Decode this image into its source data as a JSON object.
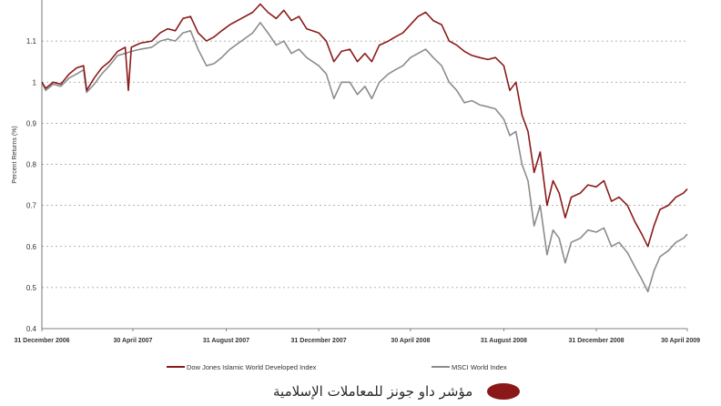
{
  "chart_data": {
    "type": "line",
    "title": "",
    "xlabel": "",
    "ylabel": "Percent Returns (%)",
    "ylim": [
      0.4,
      1.2
    ],
    "yticks": [
      "0.4",
      "0.5",
      "0.6",
      "0.7",
      "0.8",
      "0.9",
      "1",
      "1.1"
    ],
    "x_range": [
      "2006-12-31",
      "2009-04-30"
    ],
    "xticks": [
      {
        "date": "2006-12-31",
        "label": "31 December 2006"
      },
      {
        "date": "2007-04-30",
        "label": "30 April 2007"
      },
      {
        "date": "2007-08-31",
        "label": "31 August 2007"
      },
      {
        "date": "2007-12-31",
        "label": "31 December 2007"
      },
      {
        "date": "2008-04-30",
        "label": "30 April 2008"
      },
      {
        "date": "2008-08-31",
        "label": "31 August 2008"
      },
      {
        "date": "2008-12-31",
        "label": "31 December 2008"
      },
      {
        "date": "2009-04-30",
        "label": "30 April 2009"
      }
    ],
    "grid": true,
    "legend_position": "bottom",
    "series": [
      {
        "name": "Dow Jones Islamic World Developed Index",
        "color": "#8b1a1a",
        "points": [
          [
            "2006-12-31",
            1.0
          ],
          [
            "2007-01-05",
            0.985
          ],
          [
            "2007-01-15",
            1.0
          ],
          [
            "2007-01-25",
            0.995
          ],
          [
            "2007-02-05",
            1.02
          ],
          [
            "2007-02-15",
            1.035
          ],
          [
            "2007-02-24",
            1.04
          ],
          [
            "2007-02-28",
            0.98
          ],
          [
            "2007-03-10",
            1.01
          ],
          [
            "2007-03-20",
            1.035
          ],
          [
            "2007-03-30",
            1.05
          ],
          [
            "2007-04-10",
            1.075
          ],
          [
            "2007-04-20",
            1.085
          ],
          [
            "2007-04-24",
            0.98
          ],
          [
            "2007-04-28",
            1.085
          ],
          [
            "2007-05-10",
            1.095
          ],
          [
            "2007-05-25",
            1.1
          ],
          [
            "2007-06-05",
            1.12
          ],
          [
            "2007-06-15",
            1.13
          ],
          [
            "2007-06-25",
            1.125
          ],
          [
            "2007-07-05",
            1.155
          ],
          [
            "2007-07-15",
            1.16
          ],
          [
            "2007-07-25",
            1.12
          ],
          [
            "2007-08-05",
            1.1
          ],
          [
            "2007-08-15",
            1.11
          ],
          [
            "2007-08-25",
            1.125
          ],
          [
            "2007-09-05",
            1.14
          ],
          [
            "2007-09-20",
            1.155
          ],
          [
            "2007-10-05",
            1.17
          ],
          [
            "2007-10-15",
            1.19
          ],
          [
            "2007-10-25",
            1.17
          ],
          [
            "2007-11-05",
            1.155
          ],
          [
            "2007-11-15",
            1.175
          ],
          [
            "2007-11-25",
            1.15
          ],
          [
            "2007-12-05",
            1.16
          ],
          [
            "2007-12-15",
            1.13
          ],
          [
            "2007-12-31",
            1.12
          ],
          [
            "2008-01-10",
            1.1
          ],
          [
            "2008-01-20",
            1.05
          ],
          [
            "2008-01-30",
            1.075
          ],
          [
            "2008-02-10",
            1.08
          ],
          [
            "2008-02-20",
            1.05
          ],
          [
            "2008-03-01",
            1.07
          ],
          [
            "2008-03-10",
            1.05
          ],
          [
            "2008-03-20",
            1.09
          ],
          [
            "2008-04-01",
            1.1
          ],
          [
            "2008-04-10",
            1.11
          ],
          [
            "2008-04-20",
            1.12
          ],
          [
            "2008-04-30",
            1.14
          ],
          [
            "2008-05-10",
            1.16
          ],
          [
            "2008-05-20",
            1.17
          ],
          [
            "2008-05-30",
            1.15
          ],
          [
            "2008-06-10",
            1.14
          ],
          [
            "2008-06-20",
            1.1
          ],
          [
            "2008-06-30",
            1.09
          ],
          [
            "2008-07-10",
            1.075
          ],
          [
            "2008-07-20",
            1.065
          ],
          [
            "2008-07-30",
            1.06
          ],
          [
            "2008-08-10",
            1.055
          ],
          [
            "2008-08-20",
            1.06
          ],
          [
            "2008-08-31",
            1.04
          ],
          [
            "2008-09-08",
            0.98
          ],
          [
            "2008-09-16",
            1.0
          ],
          [
            "2008-09-24",
            0.92
          ],
          [
            "2008-10-02",
            0.88
          ],
          [
            "2008-10-10",
            0.78
          ],
          [
            "2008-10-18",
            0.83
          ],
          [
            "2008-10-27",
            0.7
          ],
          [
            "2008-11-04",
            0.76
          ],
          [
            "2008-11-12",
            0.73
          ],
          [
            "2008-11-20",
            0.67
          ],
          [
            "2008-11-28",
            0.72
          ],
          [
            "2008-12-10",
            0.73
          ],
          [
            "2008-12-20",
            0.75
          ],
          [
            "2008-12-31",
            0.745
          ],
          [
            "2009-01-10",
            0.76
          ],
          [
            "2009-01-20",
            0.71
          ],
          [
            "2009-01-30",
            0.72
          ],
          [
            "2009-02-10",
            0.7
          ],
          [
            "2009-02-20",
            0.66
          ],
          [
            "2009-03-01",
            0.63
          ],
          [
            "2009-03-09",
            0.6
          ],
          [
            "2009-03-17",
            0.65
          ],
          [
            "2009-03-25",
            0.69
          ],
          [
            "2009-04-05",
            0.7
          ],
          [
            "2009-04-15",
            0.72
          ],
          [
            "2009-04-25",
            0.73
          ],
          [
            "2009-04-30",
            0.74
          ]
        ]
      },
      {
        "name": "MSCI World Index",
        "color": "#8c8c8c",
        "points": [
          [
            "2006-12-31",
            1.0
          ],
          [
            "2007-01-05",
            0.98
          ],
          [
            "2007-01-15",
            0.995
          ],
          [
            "2007-01-25",
            0.99
          ],
          [
            "2007-02-05",
            1.01
          ],
          [
            "2007-02-15",
            1.02
          ],
          [
            "2007-02-24",
            1.03
          ],
          [
            "2007-02-28",
            0.975
          ],
          [
            "2007-03-10",
            0.995
          ],
          [
            "2007-03-20",
            1.02
          ],
          [
            "2007-03-30",
            1.04
          ],
          [
            "2007-04-10",
            1.065
          ],
          [
            "2007-04-20",
            1.07
          ],
          [
            "2007-04-28",
            1.075
          ],
          [
            "2007-05-10",
            1.08
          ],
          [
            "2007-05-25",
            1.085
          ],
          [
            "2007-06-05",
            1.1
          ],
          [
            "2007-06-15",
            1.105
          ],
          [
            "2007-06-25",
            1.1
          ],
          [
            "2007-07-05",
            1.12
          ],
          [
            "2007-07-15",
            1.125
          ],
          [
            "2007-07-25",
            1.08
          ],
          [
            "2007-08-05",
            1.04
          ],
          [
            "2007-08-15",
            1.045
          ],
          [
            "2007-08-25",
            1.06
          ],
          [
            "2007-09-05",
            1.08
          ],
          [
            "2007-09-20",
            1.1
          ],
          [
            "2007-10-05",
            1.12
          ],
          [
            "2007-10-15",
            1.145
          ],
          [
            "2007-10-25",
            1.12
          ],
          [
            "2007-11-05",
            1.09
          ],
          [
            "2007-11-15",
            1.1
          ],
          [
            "2007-11-25",
            1.07
          ],
          [
            "2007-12-05",
            1.08
          ],
          [
            "2007-12-15",
            1.06
          ],
          [
            "2007-12-31",
            1.04
          ],
          [
            "2008-01-10",
            1.02
          ],
          [
            "2008-01-20",
            0.96
          ],
          [
            "2008-01-30",
            1.0
          ],
          [
            "2008-02-10",
            1.0
          ],
          [
            "2008-02-20",
            0.97
          ],
          [
            "2008-03-01",
            0.99
          ],
          [
            "2008-03-10",
            0.96
          ],
          [
            "2008-03-20",
            1.0
          ],
          [
            "2008-04-01",
            1.02
          ],
          [
            "2008-04-10",
            1.03
          ],
          [
            "2008-04-20",
            1.04
          ],
          [
            "2008-04-30",
            1.06
          ],
          [
            "2008-05-10",
            1.07
          ],
          [
            "2008-05-20",
            1.08
          ],
          [
            "2008-05-30",
            1.06
          ],
          [
            "2008-06-10",
            1.04
          ],
          [
            "2008-06-20",
            1.0
          ],
          [
            "2008-06-30",
            0.98
          ],
          [
            "2008-07-10",
            0.95
          ],
          [
            "2008-07-20",
            0.955
          ],
          [
            "2008-07-30",
            0.945
          ],
          [
            "2008-08-10",
            0.94
          ],
          [
            "2008-08-20",
            0.935
          ],
          [
            "2008-08-31",
            0.91
          ],
          [
            "2008-09-08",
            0.87
          ],
          [
            "2008-09-16",
            0.88
          ],
          [
            "2008-09-24",
            0.8
          ],
          [
            "2008-10-02",
            0.76
          ],
          [
            "2008-10-10",
            0.65
          ],
          [
            "2008-10-18",
            0.7
          ],
          [
            "2008-10-27",
            0.58
          ],
          [
            "2008-11-04",
            0.64
          ],
          [
            "2008-11-12",
            0.62
          ],
          [
            "2008-11-20",
            0.56
          ],
          [
            "2008-11-28",
            0.61
          ],
          [
            "2008-12-10",
            0.62
          ],
          [
            "2008-12-20",
            0.64
          ],
          [
            "2008-12-31",
            0.635
          ],
          [
            "2009-01-10",
            0.645
          ],
          [
            "2009-01-20",
            0.6
          ],
          [
            "2009-01-30",
            0.61
          ],
          [
            "2009-02-10",
            0.585
          ],
          [
            "2009-02-20",
            0.55
          ],
          [
            "2009-03-01",
            0.52
          ],
          [
            "2009-03-09",
            0.49
          ],
          [
            "2009-03-17",
            0.54
          ],
          [
            "2009-03-25",
            0.575
          ],
          [
            "2009-04-05",
            0.59
          ],
          [
            "2009-04-15",
            0.61
          ],
          [
            "2009-04-25",
            0.62
          ],
          [
            "2009-04-30",
            0.63
          ]
        ]
      }
    ]
  },
  "caption": {
    "text": "مؤشر داو جونز للمعاملات الإسلامية",
    "marker_color": "#8a1818"
  }
}
